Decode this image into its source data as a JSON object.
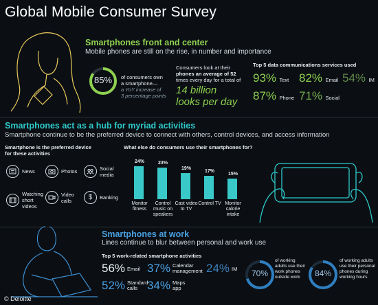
{
  "title": "Global Mobile Consumer Survey",
  "footer_logo": "© Deloitte",
  "colors": {
    "background": "#0b0f14",
    "green": "#8fd14f",
    "teal": "#2ec9c9",
    "blue_ring": "#2f7fc0",
    "text": "#e9eef2"
  },
  "section1": {
    "heading": "Smartphones front and center",
    "subheading": "Mobile phones are still on the rise, in number and importance",
    "ring_pct": "85%",
    "ring_fraction": 0.85,
    "ring_text_1": "of consumers own",
    "ring_text_2": "a smartphone—",
    "ring_text_3": "a YoY increase of",
    "ring_text_4": "3 percentage points",
    "look_text_1": "Consumers look at their",
    "look_text_2": "phones an average of 52",
    "look_text_3": "times every day for a total of",
    "look_big_1": "14 billion",
    "look_big_2": "looks per day",
    "services_title": "Top 5 data communications services used",
    "services": [
      {
        "pct": "93%",
        "label": "Text"
      },
      {
        "pct": "82%",
        "label": "Email"
      },
      {
        "pct": "54%",
        "label": "IM"
      },
      {
        "pct": "87%",
        "label": "Phone"
      },
      {
        "pct": "71%",
        "label": "Social"
      }
    ]
  },
  "section2": {
    "heading": "Smartphones act as a hub for myriad activities",
    "subheading": "Smartphone continue to be the preferred device to connect with others, control devices, and access information",
    "pref_title_1": "Smartphone is the preferred device",
    "pref_title_2": "for these activities",
    "activities": [
      {
        "label": "News",
        "icon": "news-icon"
      },
      {
        "label": "Photos",
        "icon": "camera-icon"
      },
      {
        "label": "Social media",
        "icon": "social-icon"
      },
      {
        "label": "Watching short videos",
        "icon": "film-icon"
      },
      {
        "label": "Video calls",
        "icon": "video-call-icon"
      },
      {
        "label": "Banking",
        "icon": "banking-icon"
      }
    ],
    "chart_title": "What else do consumers use their smartphones for?"
  },
  "chart_data": {
    "type": "bar",
    "title": "What else do consumers use their smartphones for?",
    "categories": [
      "Monitor fitness",
      "Control music on speakers",
      "Cast video to TV",
      "Control TV",
      "Monitor calorie intake"
    ],
    "values": [
      24,
      23,
      19,
      17,
      15
    ],
    "value_labels": [
      "24%",
      "23%",
      "19%",
      "17%",
      "15%"
    ],
    "ylim": [
      0,
      24
    ],
    "grid": false
  },
  "section3": {
    "heading": "Smartphones at work",
    "subheading": "Lines continue to blur between personal and work use",
    "services_title": "Top 5 work-related smartphone activities",
    "activities": [
      {
        "pct": "56%",
        "label": "Email"
      },
      {
        "pct": "37%",
        "label": "Calendar management"
      },
      {
        "pct": "24%",
        "label": "IM"
      },
      {
        "pct": "52%",
        "label": "Standard calls"
      },
      {
        "pct": "34%",
        "label": "Maps app"
      }
    ],
    "ring1_pct": "70%",
    "ring1_fraction": 0.7,
    "ring1_text": "of working adults use their work phones outside work",
    "ring2_pct": "84%",
    "ring2_fraction": 0.84,
    "ring2_text": "of working adults use their personal phones during working hours"
  }
}
